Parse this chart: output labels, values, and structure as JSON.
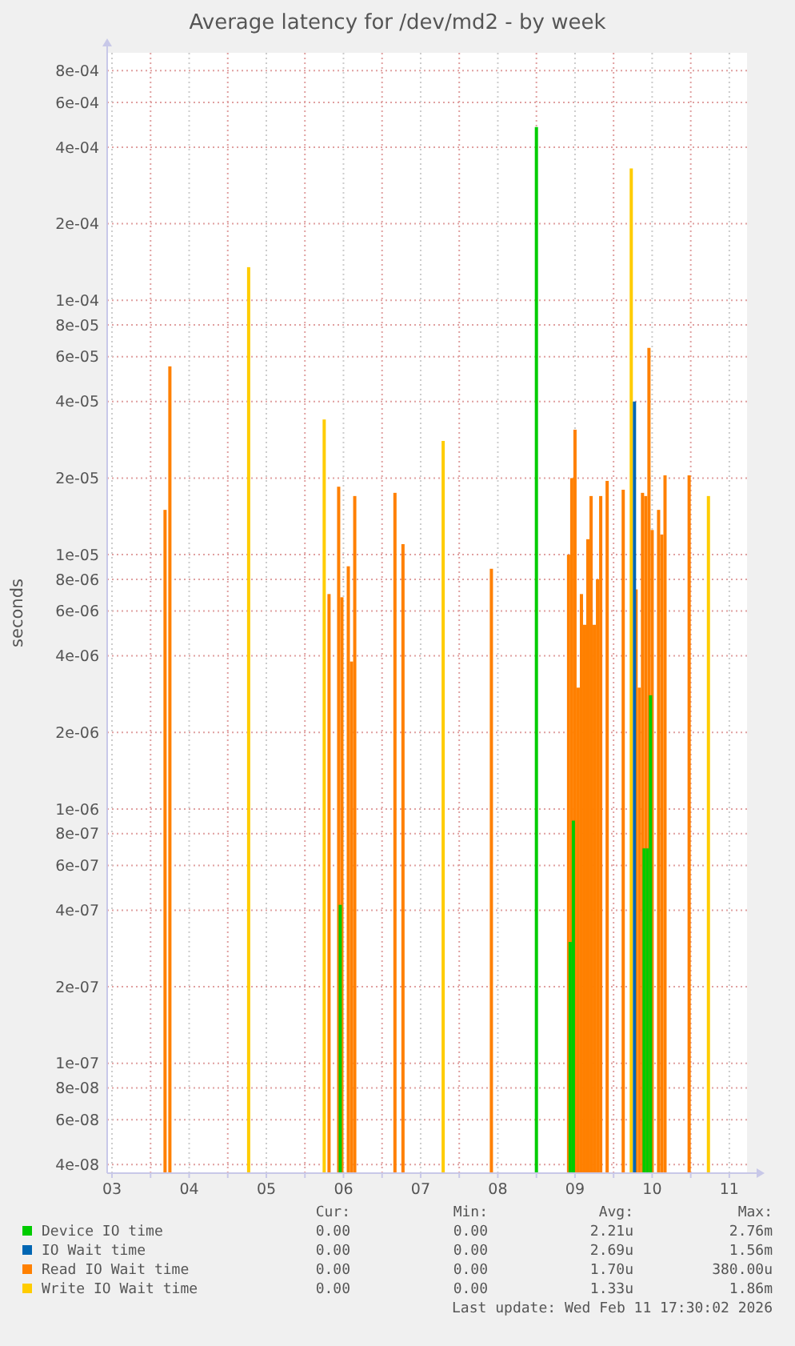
{
  "chart_data": {
    "type": "bar",
    "title": "Average latency for /dev/md2 - by week",
    "ylabel": "seconds",
    "log": "y",
    "grid": true,
    "legend": "bottom",
    "xlim": [
      "2026-02-03T10:30",
      "2026-02-11T17:30"
    ],
    "xticks": [
      {
        "value": "2026-02-03T12:00",
        "label": "03"
      },
      {
        "value": "2026-02-04T00:00",
        "label": null
      },
      {
        "value": "2026-02-04T12:00",
        "label": "04"
      },
      {
        "value": "2026-02-05T00:00",
        "label": null
      },
      {
        "value": "2026-02-05T12:00",
        "label": "05"
      },
      {
        "value": "2026-02-06T00:00",
        "label": null
      },
      {
        "value": "2026-02-06T12:00",
        "label": "06"
      },
      {
        "value": "2026-02-07T00:00",
        "label": null
      },
      {
        "value": "2026-02-07T12:00",
        "label": "07"
      },
      {
        "value": "2026-02-08T00:00",
        "label": null
      },
      {
        "value": "2026-02-08T12:00",
        "label": "08"
      },
      {
        "value": "2026-02-09T00:00",
        "label": null
      },
      {
        "value": "2026-02-09T12:00",
        "label": "09"
      },
      {
        "value": "2026-02-10T00:00",
        "label": null
      },
      {
        "value": "2026-02-10T12:00",
        "label": "10"
      },
      {
        "value": "2026-02-11T00:00",
        "label": null
      },
      {
        "value": "2026-02-11T12:00",
        "label": "11"
      }
    ],
    "ylim": [
      3.7e-08,
      0.00094
    ],
    "yticks": [
      {
        "value": 4e-08,
        "label": "4e-08"
      },
      {
        "value": 6e-08,
        "label": "6e-08"
      },
      {
        "value": 8e-08,
        "label": "8e-08"
      },
      {
        "value": 1e-07,
        "label": "1e-07"
      },
      {
        "value": 2e-07,
        "label": "2e-07"
      },
      {
        "value": 4e-07,
        "label": "4e-07"
      },
      {
        "value": 6e-07,
        "label": "6e-07"
      },
      {
        "value": 8e-07,
        "label": "8e-07"
      },
      {
        "value": 1e-06,
        "label": "1e-06"
      },
      {
        "value": 2e-06,
        "label": "2e-06"
      },
      {
        "value": 4e-06,
        "label": "4e-06"
      },
      {
        "value": 6e-06,
        "label": "6e-06"
      },
      {
        "value": 8e-06,
        "label": "8e-06"
      },
      {
        "value": 1e-05,
        "label": "1e-05"
      },
      {
        "value": 2e-05,
        "label": "2e-05"
      },
      {
        "value": 4e-05,
        "label": "4e-05"
      },
      {
        "value": 6e-05,
        "label": "6e-05"
      },
      {
        "value": 8e-05,
        "label": "8e-05"
      },
      {
        "value": 0.0001,
        "label": "1e-04"
      },
      {
        "value": 0.0002,
        "label": "2e-04"
      },
      {
        "value": 0.0004,
        "label": "4e-04"
      },
      {
        "value": 0.0006,
        "label": "6e-04"
      },
      {
        "value": 0.0008,
        "label": "8e-04"
      }
    ],
    "series": [
      {
        "name": "Device IO time",
        "color": "#00cc00",
        "x": [
          "2026-02-06T11:00",
          "2026-02-09T00:00",
          "2026-02-09T10:30",
          "2026-02-09T11:30",
          "2026-02-10T09:30",
          "2026-02-10T10:30",
          "2026-02-10T11:30"
        ],
        "values": [
          4.2e-07,
          0.00048,
          3e-07,
          9e-07,
          7e-07,
          7e-07,
          2.8e-06
        ]
      },
      {
        "name": "IO Wait time",
        "color": "#0066b3",
        "x": [
          "2026-02-10T06:30"
        ],
        "values": [
          4e-05
        ]
      },
      {
        "name": "Read IO Wait time",
        "color": "#ff8000",
        "x": [
          "2026-02-04T04:30",
          "2026-02-04T06:00",
          "2026-02-06T07:30",
          "2026-02-06T10:30",
          "2026-02-06T11:30",
          "2026-02-06T13:30",
          "2026-02-06T14:30",
          "2026-02-06T15:30",
          "2026-02-07T04:00",
          "2026-02-07T06:30",
          "2026-02-08T10:00",
          "2026-02-09T10:00",
          "2026-02-09T11:00",
          "2026-02-09T12:00",
          "2026-02-09T13:00",
          "2026-02-09T14:00",
          "2026-02-09T15:00",
          "2026-02-09T16:00",
          "2026-02-09T17:00",
          "2026-02-09T18:00",
          "2026-02-09T19:00",
          "2026-02-09T20:00",
          "2026-02-09T22:00",
          "2026-02-10T03:00",
          "2026-02-10T07:00",
          "2026-02-10T08:00",
          "2026-02-10T09:00",
          "2026-02-10T10:00",
          "2026-02-10T11:00",
          "2026-02-10T12:00",
          "2026-02-10T14:00",
          "2026-02-10T15:00",
          "2026-02-10T16:00",
          "2026-02-10T23:30"
        ],
        "values": [
          1.5e-05,
          5.5e-05,
          7e-06,
          1.85e-05,
          6.8e-06,
          9e-06,
          3.8e-06,
          1.7e-05,
          1.75e-05,
          1.1e-05,
          8.8e-06,
          1e-05,
          2e-05,
          3.1e-05,
          3e-06,
          7e-06,
          5.3e-06,
          1.15e-05,
          1.7e-05,
          5.3e-06,
          8e-06,
          1.7e-05,
          1.95e-05,
          1.8e-05,
          7.3e-06,
          3e-06,
          1.75e-05,
          1.7e-05,
          6.5e-05,
          1.25e-05,
          1.5e-05,
          1.2e-05,
          2.05e-05,
          2.05e-05
        ]
      },
      {
        "name": "Write IO Wait time",
        "color": "#ffcc00",
        "x": [
          "2026-02-05T06:30",
          "2026-02-06T06:00",
          "2026-02-07T19:00",
          "2026-02-10T05:30",
          "2026-02-11T05:30"
        ],
        "values": [
          0.000135,
          3.4e-05,
          2.8e-05,
          0.00033,
          1.7e-05
        ]
      }
    ],
    "annotations": [
      "Cur:",
      "Min:",
      "Avg:",
      "Max:",
      "0.00",
      "0.00",
      "2.21u",
      "2.76m",
      "0.00",
      "0.00",
      "2.69u",
      "1.56m",
      "0.00",
      "0.00",
      "1.70u",
      "380.00u",
      "0.00",
      "0.00",
      "1.33u",
      "1.86m",
      "Last update: Wed Feb 11 17:30:02 2026"
    ]
  }
}
